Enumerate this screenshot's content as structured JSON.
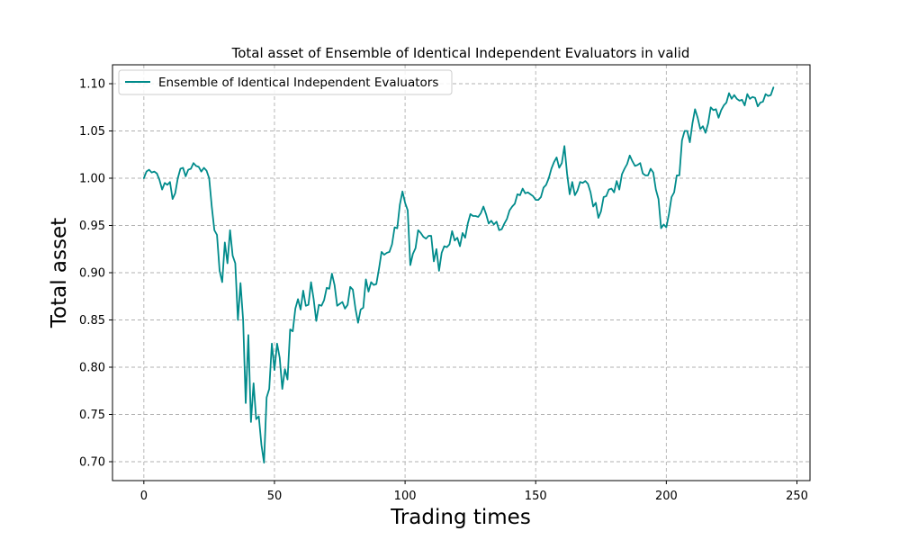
{
  "chart_data": {
    "type": "line",
    "title": "Total asset of Ensemble of Identical Independent Evaluators in valid",
    "xlabel": "Trading times",
    "ylabel": "Total asset",
    "xlim": [
      -12,
      255
    ],
    "ylim": [
      0.68,
      1.12
    ],
    "xticks": [
      0,
      50,
      100,
      150,
      200,
      250
    ],
    "yticks": [
      0.7,
      0.75,
      0.8,
      0.85,
      0.9,
      0.95,
      1.0,
      1.05,
      1.1
    ],
    "grid": true,
    "legend_position": "top-left",
    "series": [
      {
        "name": "Ensemble of Identical Independent Evaluators",
        "color": "#008b8b",
        "x_start": 0,
        "x_step": 1,
        "values": [
          1.0,
          1.007,
          1.009,
          1.006,
          1.007,
          1.005,
          0.998,
          0.988,
          0.995,
          0.993,
          0.996,
          0.978,
          0.984,
          1.0,
          1.01,
          1.011,
          1.002,
          1.009,
          1.01,
          1.016,
          1.013,
          1.012,
          1.007,
          1.011,
          1.008,
          1.0,
          0.97,
          0.945,
          0.94,
          0.902,
          0.89,
          0.932,
          0.91,
          0.945,
          0.918,
          0.91,
          0.85,
          0.889,
          0.85,
          0.762,
          0.834,
          0.742,
          0.783,
          0.745,
          0.748,
          0.718,
          0.699,
          0.768,
          0.777,
          0.825,
          0.797,
          0.825,
          0.81,
          0.777,
          0.798,
          0.787,
          0.84,
          0.838,
          0.862,
          0.872,
          0.861,
          0.881,
          0.865,
          0.866,
          0.89,
          0.872,
          0.849,
          0.866,
          0.865,
          0.871,
          0.884,
          0.883,
          0.899,
          0.887,
          0.865,
          0.867,
          0.869,
          0.862,
          0.866,
          0.885,
          0.882,
          0.862,
          0.847,
          0.861,
          0.863,
          0.893,
          0.88,
          0.89,
          0.887,
          0.888,
          0.904,
          0.922,
          0.919,
          0.921,
          0.922,
          0.93,
          0.948,
          0.947,
          0.972,
          0.986,
          0.974,
          0.966,
          0.908,
          0.92,
          0.926,
          0.945,
          0.942,
          0.938,
          0.936,
          0.939,
          0.939,
          0.912,
          0.925,
          0.902,
          0.921,
          0.928,
          0.927,
          0.93,
          0.944,
          0.934,
          0.937,
          0.928,
          0.942,
          0.937,
          0.952,
          0.962,
          0.96,
          0.96,
          0.959,
          0.963,
          0.97,
          0.962,
          0.952,
          0.955,
          0.951,
          0.954,
          0.945,
          0.946,
          0.952,
          0.957,
          0.966,
          0.97,
          0.973,
          0.983,
          0.982,
          0.989,
          0.984,
          0.985,
          0.983,
          0.981,
          0.977,
          0.977,
          0.98,
          0.99,
          0.993,
          1.0,
          1.01,
          1.017,
          1.022,
          1.011,
          1.016,
          1.034,
          1.005,
          0.983,
          0.996,
          0.982,
          0.987,
          0.996,
          0.995,
          0.997,
          0.994,
          0.985,
          0.97,
          0.974,
          0.958,
          0.965,
          0.98,
          0.981,
          0.988,
          0.989,
          0.985,
          0.997,
          0.988,
          1.004,
          1.01,
          1.015,
          1.024,
          1.018,
          1.013,
          1.014,
          1.016,
          1.005,
          1.003,
          1.003,
          1.01,
          1.006,
          0.988,
          0.978,
          0.947,
          0.951,
          0.948,
          0.962,
          0.98,
          0.985,
          1.003,
          1.003,
          1.04,
          1.05,
          1.05,
          1.038,
          1.058,
          1.073,
          1.064,
          1.052,
          1.055,
          1.048,
          1.058,
          1.075,
          1.072,
          1.073,
          1.064,
          1.072,
          1.077,
          1.08,
          1.09,
          1.084,
          1.088,
          1.084,
          1.082,
          1.083,
          1.077,
          1.089,
          1.084,
          1.086,
          1.085,
          1.076,
          1.08,
          1.081,
          1.089,
          1.087,
          1.088,
          1.096
        ]
      }
    ]
  }
}
